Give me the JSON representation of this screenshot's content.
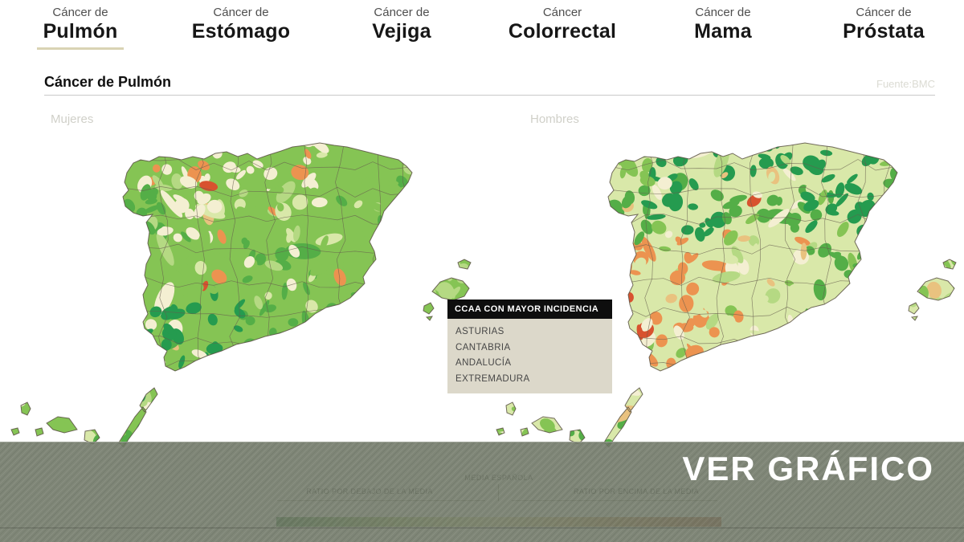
{
  "tabs": [
    {
      "prefix": "Cáncer de",
      "name": "Pulmón",
      "active": true
    },
    {
      "prefix": "Cáncer de",
      "name": "Estómago",
      "active": false
    },
    {
      "prefix": "Cáncer de",
      "name": "Vejiga",
      "active": false
    },
    {
      "prefix": "Cáncer",
      "name": "Colorrectal",
      "active": false
    },
    {
      "prefix": "Cáncer de",
      "name": "Mama",
      "active": false
    },
    {
      "prefix": "Cáncer de",
      "name": "Próstata",
      "active": false
    }
  ],
  "header": {
    "title": "Cáncer de Pulmón",
    "source": "Fuente:BMC"
  },
  "maps": {
    "left": {
      "label": "Mujeres",
      "seed": 11,
      "base": "M",
      "grid": [
        ".MCCMM",
        ".GCMMM",
        ".MMGML",
        ".DDGGM",
        ".DDGMM",
        "MGMM.."
      ]
    },
    "right": {
      "label": "Hombres",
      "seed": 23,
      "base": "P",
      "grid": [
        ".MDDDG",
        ".GDGDM",
        ".OOPGM",
        ".ROPGL",
        ".OOGMG",
        "MGLM.."
      ]
    }
  },
  "incidence_box": {
    "title": "CCAA CON MAYOR INCIDENCIA",
    "items": [
      "ASTURIAS",
      "CANTABRIA",
      "ANDALUCÍA",
      "EXTREMADURA"
    ]
  },
  "scale_legend": {
    "center_label": "MEDIA ESPAÑOLA",
    "left_label": "RATIO POR DEBAJO DE LA MEDIA",
    "right_label": "RATIO POR ENCIMA DE LA MEDIA",
    "gradient": [
      "#2c7a36",
      "#5ea344",
      "#9dc25d",
      "#cdd98b",
      "#e6dfa5",
      "#ddbd76",
      "#cf9250",
      "#c06a3c",
      "#ad4527"
    ]
  },
  "overlay": {
    "button_label": "VER GRÁFICO"
  },
  "colors": {
    "tab_underline": "#d9d3b4",
    "overlay_bar": "#717968",
    "header_rule": "#c9c9c9",
    "legend_header_bg": "#0e0e0e",
    "legend_body_bg": "#dbd7c8"
  },
  "map_palette": {
    "darkGreen": "#259b4f",
    "green": "#54ae47",
    "midGreen": "#85c454",
    "lightGreen": "#b5d983",
    "paleGreen": "#d9e8a9",
    "cream": "#f4efd2",
    "tan": "#e9c27f",
    "orange": "#ec9350",
    "red": "#d8522f"
  }
}
